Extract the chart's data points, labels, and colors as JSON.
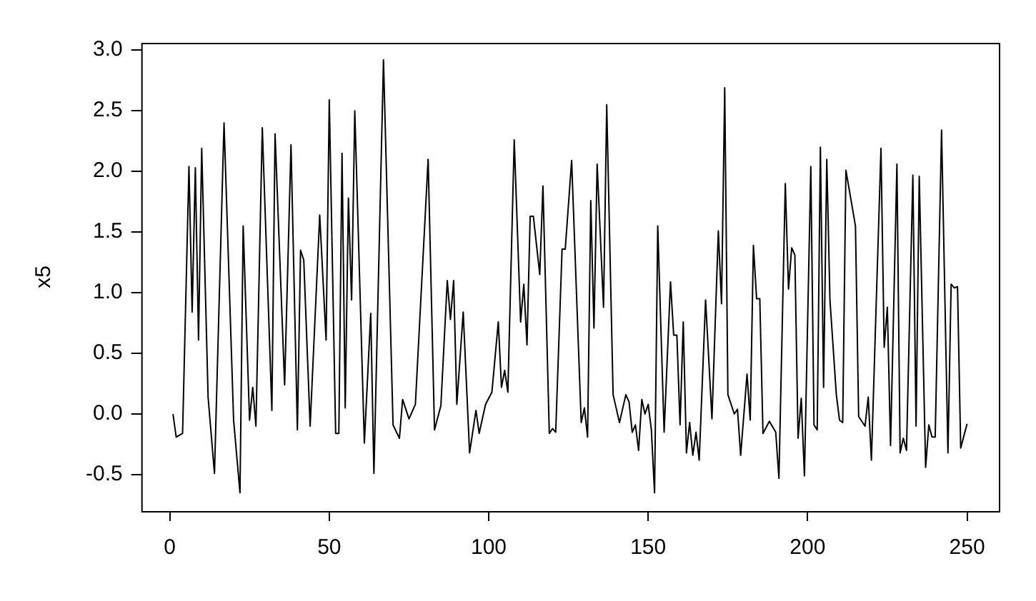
{
  "chart_data": {
    "type": "line",
    "ylabel": "x5",
    "xlim": [
      -8.96,
      259.96
    ],
    "ylim": [
      -0.8,
      3.06
    ],
    "xticks": [
      0,
      50,
      100,
      150,
      200,
      250
    ],
    "yticks": [
      {
        "value": -0.5,
        "label": "-0.5"
      },
      {
        "value": 0,
        "label": "0.0"
      },
      {
        "value": 0.5,
        "label": "0.5"
      },
      {
        "value": 1,
        "label": "1.0"
      },
      {
        "value": 1.5,
        "label": "1.5"
      },
      {
        "value": 2,
        "label": "2.0"
      },
      {
        "value": 2.5,
        "label": "2.5"
      },
      {
        "value": 3,
        "label": "3.0"
      }
    ],
    "grid": false,
    "legend": false,
    "marker": "none",
    "line_style": "solid",
    "series": [
      {
        "color": "#000000",
        "x": [
          1,
          2,
          4,
          6,
          7,
          8,
          9,
          10,
          12,
          14,
          17,
          20,
          22,
          23,
          25,
          26,
          27,
          29,
          32,
          33,
          36,
          38,
          40,
          41,
          42,
          44,
          47,
          49,
          50,
          52,
          53,
          54,
          55,
          56,
          57,
          58,
          61,
          63,
          64,
          67,
          70,
          72,
          73,
          75,
          77,
          81,
          83,
          85,
          87,
          88,
          89,
          90,
          92,
          94,
          96,
          97,
          99,
          101,
          103,
          104,
          105,
          106,
          108,
          110,
          111,
          112,
          113,
          114,
          116,
          117,
          119,
          120,
          121,
          123,
          124,
          126,
          129,
          130,
          131,
          132,
          133,
          134,
          136,
          137,
          139,
          141,
          143,
          144,
          145,
          146,
          147,
          148,
          149,
          150,
          151,
          152,
          153,
          155,
          157,
          158,
          159,
          160,
          161,
          162,
          163,
          164,
          165,
          166,
          168,
          170,
          172,
          173,
          174,
          175,
          177,
          178,
          179,
          181,
          182,
          183,
          184,
          185,
          186,
          188,
          190,
          191,
          193,
          194,
          195,
          196,
          197,
          198,
          199,
          201,
          202,
          203,
          204,
          205,
          206,
          207,
          209,
          210,
          211,
          212,
          215,
          216,
          218,
          219,
          220,
          223,
          224,
          225,
          226,
          228,
          229,
          230,
          231,
          233,
          234,
          235,
          237,
          238,
          239,
          240,
          242,
          244,
          245,
          246,
          247,
          248,
          250
        ],
        "values": [
          0,
          -0.19,
          -0.16,
          2.04,
          0.84,
          2.03,
          0.61,
          2.19,
          0.14,
          -0.49,
          2.4,
          -0.05,
          -0.65,
          1.55,
          -0.05,
          0.22,
          -0.1,
          2.36,
          0.03,
          2.31,
          0.24,
          2.22,
          -0.13,
          1.35,
          1.27,
          -0.1,
          1.64,
          0.61,
          2.59,
          -0.16,
          -0.16,
          2.15,
          0.05,
          1.78,
          0.94,
          2.5,
          -0.24,
          0.83,
          -0.49,
          2.92,
          -0.09,
          -0.2,
          0.12,
          -0.04,
          0.08,
          2.1,
          -0.13,
          0.07,
          1.1,
          0.78,
          1.1,
          0.08,
          0.84,
          -0.32,
          0.03,
          -0.16,
          0.08,
          0.18,
          0.76,
          0.22,
          0.36,
          0.18,
          2.26,
          0.76,
          1.07,
          0.57,
          1.63,
          1.63,
          1.15,
          1.88,
          -0.16,
          -0.12,
          -0.15,
          1.36,
          1.36,
          2.09,
          -0.07,
          0.05,
          -0.19,
          1.76,
          0.71,
          2.06,
          0.88,
          2.55,
          0.16,
          -0.07,
          0.16,
          0.1,
          -0.15,
          -0.09,
          -0.3,
          0.12,
          0,
          0.08,
          -0.13,
          -0.65,
          1.55,
          -0.15,
          1.09,
          0.65,
          0.65,
          -0.09,
          0.76,
          -0.32,
          -0.07,
          -0.34,
          -0.15,
          -0.38,
          0.94,
          -0.04,
          1.51,
          0.91,
          2.69,
          0.16,
          0,
          0.04,
          -0.34,
          0.33,
          -0.05,
          1.39,
          0.95,
          0.95,
          -0.16,
          -0.06,
          -0.15,
          -0.53,
          1.9,
          1.03,
          1.37,
          1.31,
          -0.2,
          0.13,
          -0.51,
          2.04,
          -0.09,
          -0.13,
          2.2,
          0.22,
          2.1,
          0.94,
          0.16,
          -0.05,
          -0.07,
          2.01,
          1.55,
          -0.02,
          -0.1,
          0.14,
          -0.38,
          2.19,
          0.55,
          0.88,
          -0.26,
          2.06,
          -0.32,
          -0.2,
          -0.3,
          1.97,
          -0.1,
          1.96,
          -0.44,
          -0.09,
          -0.19,
          -0.19,
          2.34,
          -0.32,
          1.07,
          1.04,
          1.05,
          -0.28,
          -0.08
        ]
      }
    ]
  }
}
